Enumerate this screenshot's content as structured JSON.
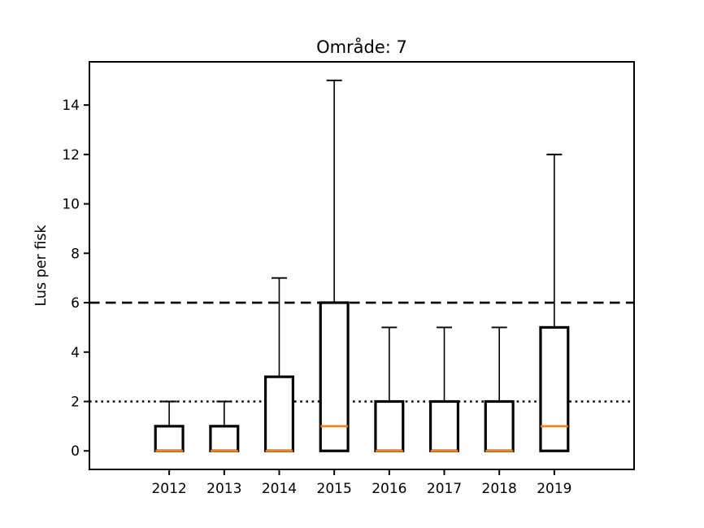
{
  "chart_data": {
    "type": "boxplot",
    "title": "Område: 7",
    "ylabel": "Lus per fisk",
    "xlabel": "",
    "categories": [
      "2012",
      "2013",
      "2014",
      "2015",
      "2016",
      "2017",
      "2018",
      "2019"
    ],
    "positions": [
      1,
      2,
      3,
      4,
      5,
      6,
      7,
      8
    ],
    "yticks": [
      0,
      2,
      4,
      6,
      8,
      10,
      12,
      14
    ],
    "ylim": [
      -0.75,
      15.75
    ],
    "xlim": [
      -0.45,
      9.45
    ],
    "grid": false,
    "legend": null,
    "box_width": 0.5,
    "boxes": [
      {
        "category": "2012",
        "position": 1,
        "whisker_low": 0,
        "q1": 0,
        "median": 0,
        "q3": 1,
        "whisker_high": 2
      },
      {
        "category": "2013",
        "position": 2,
        "whisker_low": 0,
        "q1": 0,
        "median": 0,
        "q3": 1,
        "whisker_high": 2
      },
      {
        "category": "2014",
        "position": 3,
        "whisker_low": 0,
        "q1": 0,
        "median": 0,
        "q3": 3,
        "whisker_high": 7
      },
      {
        "category": "2015",
        "position": 4,
        "whisker_low": 0,
        "q1": 0,
        "median": 1,
        "q3": 6,
        "whisker_high": 15
      },
      {
        "category": "2016",
        "position": 5,
        "whisker_low": 0,
        "q1": 0,
        "median": 0,
        "q3": 2,
        "whisker_high": 5
      },
      {
        "category": "2017",
        "position": 6,
        "whisker_low": 0,
        "q1": 0,
        "median": 0,
        "q3": 2,
        "whisker_high": 5
      },
      {
        "category": "2018",
        "position": 7,
        "whisker_low": 0,
        "q1": 0,
        "median": 0,
        "q3": 2,
        "whisker_high": 5
      },
      {
        "category": "2019",
        "position": 8,
        "whisker_low": 0,
        "q1": 0,
        "median": 1,
        "q3": 5,
        "whisker_high": 12
      }
    ],
    "reference_lines": [
      {
        "y": 6,
        "style": "dashed"
      },
      {
        "y": 2,
        "style": "dotted"
      }
    ],
    "colors": {
      "box_edge": "#000000",
      "median": "#ff7f0e",
      "reference": "#000000",
      "axis": "#000000",
      "text": "#000000",
      "background": "#ffffff",
      "box_fill": "#ffffff"
    }
  }
}
